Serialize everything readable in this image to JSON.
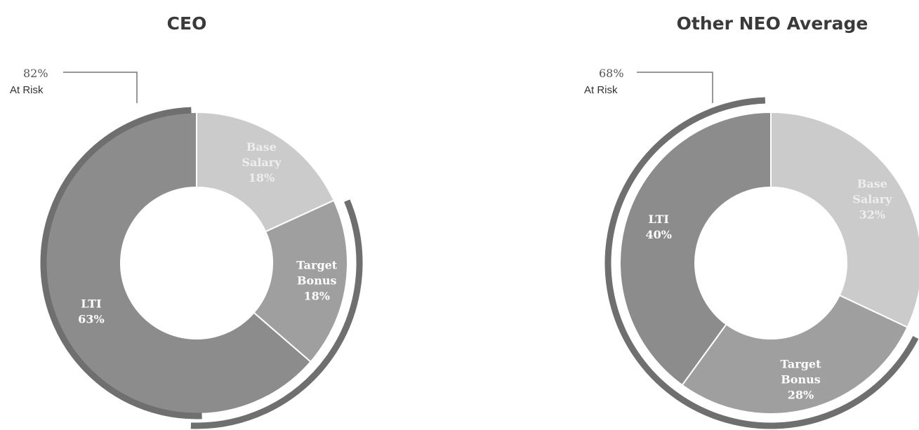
{
  "chart_data": [
    {
      "type": "pie",
      "title": "CEO",
      "slices": [
        {
          "label_lines": [
            "Base",
            "Salary"
          ],
          "value": 18,
          "value_label": "18%",
          "color": "#cbcbcb",
          "label_color": "#eeeeee"
        },
        {
          "label_lines": [
            "Target",
            "Bonus"
          ],
          "value": 18,
          "value_label": "18%",
          "color": "#9f9f9f",
          "label_color": "#ffffff"
        },
        {
          "label_lines": [
            "LTI"
          ],
          "value": 63,
          "value_label": "63%",
          "color": "#8c8c8c",
          "label_color": "#ffffff"
        }
      ],
      "at_risk": {
        "percent": "82%",
        "label": "At Risk",
        "value": 82
      }
    },
    {
      "type": "pie",
      "title": "Other NEO Average",
      "slices": [
        {
          "label_lines": [
            "Base",
            "Salary"
          ],
          "value": 32,
          "value_label": "32%",
          "color": "#cbcbcb",
          "label_color": "#eeeeee"
        },
        {
          "label_lines": [
            "Target",
            "Bonus"
          ],
          "value": 28,
          "value_label": "28%",
          "color": "#9f9f9f",
          "label_color": "#ffffff"
        },
        {
          "label_lines": [
            "LTI"
          ],
          "value": 40,
          "value_label": "40%",
          "color": "#8c8c8c",
          "label_color": "#ffffff"
        }
      ],
      "at_risk": {
        "percent": "68%",
        "label": "At Risk",
        "value": 68
      }
    }
  ],
  "colors": {
    "arc": "#6f6f6f",
    "leader": "#777777",
    "title": "#3a3a3a"
  }
}
